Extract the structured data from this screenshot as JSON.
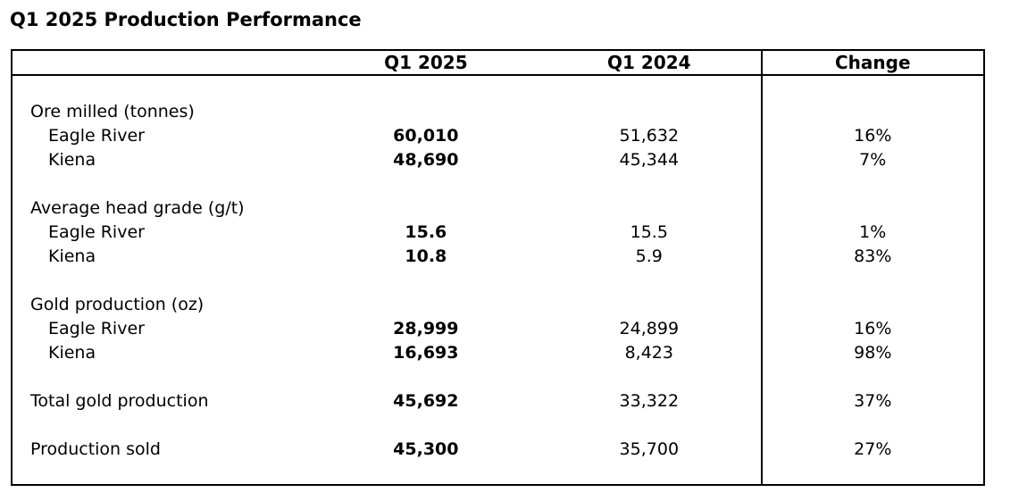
{
  "page_title": "Q1 2025 Production Performance",
  "table": {
    "headers": {
      "metric": "",
      "q1_2025": "Q1 2025",
      "q1_2024": "Q1 2024",
      "change": "Change"
    },
    "sections": [
      {
        "group_label": "Ore milled (tonnes)",
        "rows": [
          {
            "label": "Eagle River",
            "q1_2025": "60,010",
            "q1_2024": "51,632",
            "change": "16%"
          },
          {
            "label": "Kiena",
            "q1_2025": "48,690",
            "q1_2024": "45,344",
            "change": "7%"
          }
        ]
      },
      {
        "group_label": "Average head grade (g/t)",
        "rows": [
          {
            "label": "Eagle River",
            "q1_2025": "15.6",
            "q1_2024": "15.5",
            "change": "1%"
          },
          {
            "label": "Kiena",
            "q1_2025": "10.8",
            "q1_2024": "5.9",
            "change": "83%"
          }
        ]
      },
      {
        "group_label": "Gold production (oz)",
        "rows": [
          {
            "label": "Eagle River",
            "q1_2025": "28,999",
            "q1_2024": "24,899",
            "change": "16%"
          },
          {
            "label": "Kiena",
            "q1_2025": "16,693",
            "q1_2024": "8,423",
            "change": "98%"
          }
        ]
      }
    ],
    "totals": [
      {
        "label": "Total gold production",
        "q1_2025": "45,692",
        "q1_2024": "33,322",
        "change": "37%"
      },
      {
        "label": "Production sold",
        "q1_2025": "45,300",
        "q1_2024": "35,700",
        "change": "27%"
      }
    ]
  },
  "colors": {
    "text": "#000000",
    "background": "#ffffff",
    "border": "#000000"
  }
}
